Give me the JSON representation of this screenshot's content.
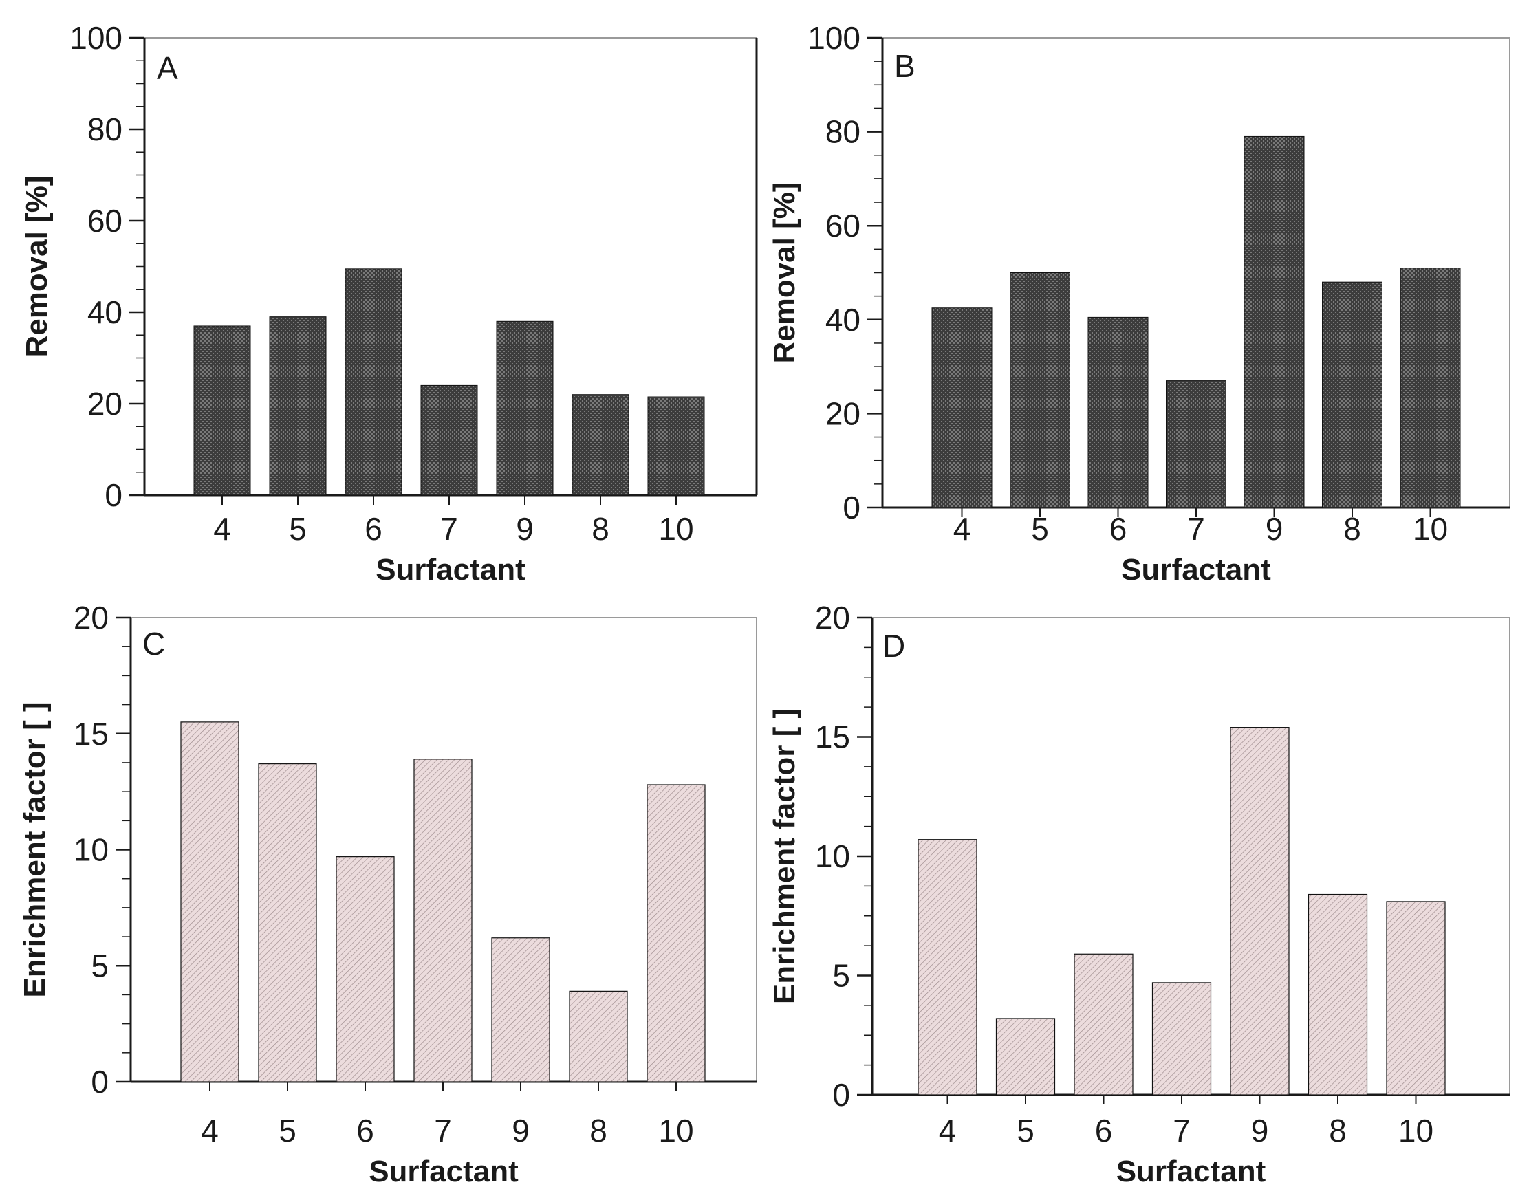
{
  "colors": {
    "dark_bar_fill": "#3c3c3c",
    "light_bar_fill": "#e6d2d4",
    "axis": "#1a1a1a",
    "frame_light": "#9a9a9a",
    "bar_edge": "#111111"
  },
  "chart_data": [
    {
      "panel": "A",
      "type": "bar",
      "categories": [
        "4",
        "5",
        "6",
        "7",
        "9",
        "8",
        "10"
      ],
      "values": [
        37,
        39,
        49.5,
        24,
        38,
        22,
        21.5
      ],
      "xlabel": "Surfactant",
      "ylabel": "Removal [%]",
      "ylim": [
        0,
        100
      ],
      "yticks": [
        0,
        20,
        40,
        60,
        80,
        100
      ],
      "style": "dark"
    },
    {
      "panel": "B",
      "type": "bar",
      "categories": [
        "4",
        "5",
        "6",
        "7",
        "9",
        "8",
        "10"
      ],
      "values": [
        42.5,
        50,
        40.5,
        27,
        79,
        48,
        51
      ],
      "xlabel": "Surfactant",
      "ylabel": "Removal [%]",
      "ylim": [
        0,
        100
      ],
      "yticks": [
        0,
        20,
        40,
        60,
        80,
        100
      ],
      "style": "dark"
    },
    {
      "panel": "C",
      "type": "bar",
      "categories": [
        "4",
        "5",
        "6",
        "7",
        "9",
        "8",
        "10"
      ],
      "values": [
        15.5,
        13.7,
        9.7,
        13.9,
        6.2,
        3.9,
        12.8
      ],
      "xlabel": "Surfactant",
      "ylabel": "Enrichment factor [ ]",
      "ylim": [
        0,
        20
      ],
      "yticks": [
        0,
        5,
        10,
        15,
        20
      ],
      "style": "light"
    },
    {
      "panel": "D",
      "type": "bar",
      "categories": [
        "4",
        "5",
        "6",
        "7",
        "9",
        "8",
        "10"
      ],
      "values": [
        10.7,
        3.2,
        5.9,
        4.7,
        15.4,
        8.4,
        8.1
      ],
      "xlabel": "Surfactant",
      "ylabel": "Enrichment factor [ ]",
      "ylim": [
        0,
        20
      ],
      "yticks": [
        0,
        5,
        10,
        15,
        20
      ],
      "style": "light"
    }
  ]
}
